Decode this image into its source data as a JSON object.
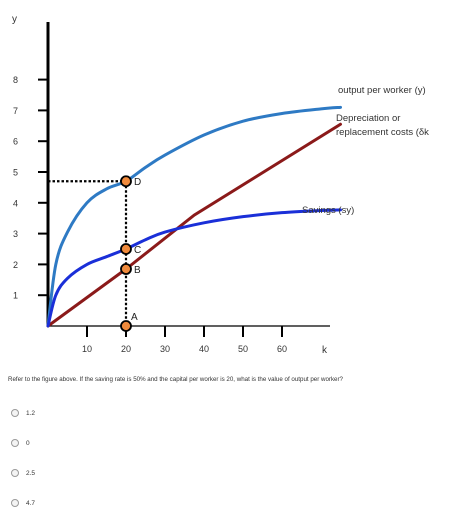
{
  "chart_data": {
    "type": "line",
    "ylabel": "y",
    "xlabel": "k",
    "xlim": [
      0,
      80
    ],
    "ylim": [
      0,
      9
    ],
    "x_ticks": [
      10,
      20,
      30,
      40,
      50,
      60
    ],
    "y_ticks": [
      1,
      2,
      3,
      4,
      5,
      6,
      7,
      8
    ],
    "series": [
      {
        "name": "output per worker (y)",
        "color": "#2e7ac4",
        "x": [
          0,
          2,
          5,
          10,
          15,
          20,
          25,
          30,
          40,
          50,
          60,
          70,
          75
        ],
        "values": [
          0,
          2.0,
          3.05,
          4.0,
          4.45,
          4.7,
          5.15,
          5.55,
          6.2,
          6.65,
          6.9,
          7.05,
          7.1
        ]
      },
      {
        "name": "Depreciation or replacement costs (δk",
        "color": "#8b1a1a",
        "x": [
          0,
          20,
          37.5,
          75
        ],
        "values": [
          0,
          1.85,
          3.6,
          6.55
        ]
      },
      {
        "name": "Savings (sy)",
        "color": "#1a2fd8",
        "x": [
          0,
          2,
          5,
          10,
          15,
          20,
          25,
          30,
          40,
          50,
          60,
          70,
          75
        ],
        "values": [
          0,
          1.0,
          1.55,
          2.0,
          2.25,
          2.5,
          2.8,
          3.05,
          3.35,
          3.55,
          3.68,
          3.75,
          3.77
        ]
      }
    ],
    "points": [
      {
        "label": "D",
        "x": 20,
        "y": 4.7
      },
      {
        "label": "C",
        "x": 20,
        "y": 2.5
      },
      {
        "label": "B",
        "x": 20,
        "y": 1.85
      },
      {
        "label": "A",
        "x": 20,
        "y": 0
      }
    ],
    "annotations": [
      "output per worker (y)",
      "Depreciation or",
      "replacement costs (δk",
      "Savings (sy)"
    ]
  },
  "question": {
    "text": "Refer to the figure above. If the saving rate is 50% and the capital per worker is 20, what is the value of output per worker?",
    "options": [
      "1.2",
      "0",
      "2.5",
      "4.7"
    ]
  }
}
